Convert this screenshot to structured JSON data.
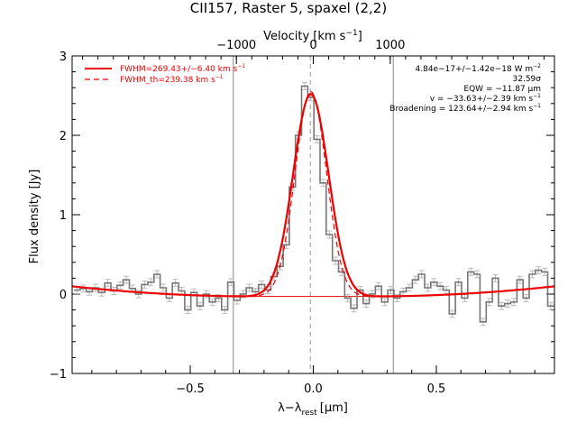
{
  "chart_data": {
    "type": "line",
    "title": "CII157, Raster 5, spaxel (2,2)",
    "xlabel_main": "λ",
    "xlabel_minus": "−",
    "xlabel_lambda": "λ",
    "xlabel_sub": "rest",
    "xlabel_unit": "[μm]",
    "ylabel": "Flux density [Jy]",
    "top_axis_label_main": "Velocity [km s",
    "top_axis_label_sup": "−1",
    "top_axis_label_end": "]",
    "xlim": [
      -0.98,
      0.98
    ],
    "ylim": [
      -1,
      3
    ],
    "x_ticks": [
      {
        "value": -0.5,
        "label": "−0.5"
      },
      {
        "value": 0.0,
        "label": "0.0"
      },
      {
        "value": 0.5,
        "label": "0.5"
      }
    ],
    "y_ticks": [
      {
        "value": -1,
        "label": "−1"
      },
      {
        "value": 0,
        "label": "0"
      },
      {
        "value": 1,
        "label": "1"
      },
      {
        "value": 2,
        "label": "2"
      },
      {
        "value": 3,
        "label": "3"
      }
    ],
    "top_ticks": [
      {
        "value": -0.3125,
        "label": "−1000"
      },
      {
        "value": 0.0,
        "label": "0"
      },
      {
        "value": 0.3125,
        "label": "1000"
      }
    ],
    "vertical_lines": [
      -0.325,
      0.325
    ],
    "center_dashed_line": -0.012,
    "legend": [
      {
        "label_pre": "FWHM=269.43+/−6.40 km s",
        "sup": "−1",
        "style": "solid",
        "color": "#ee0000"
      },
      {
        "label_pre": "FWHM_th=239.38 km s",
        "sup": "−1",
        "style": "dashed",
        "color": "#ee0000"
      }
    ],
    "annotations": [
      {
        "pre": "4.84e−17+/−1.42e−18 W m",
        "sup": "−2"
      },
      {
        "pre": "32.59σ",
        "sup": ""
      },
      {
        "pre": "EQW = −11.87 μm",
        "sup": ""
      },
      {
        "pre": "v = −33.63+/−2.39 km s",
        "sup": "−1"
      },
      {
        "pre": "Broadening = 123.64+/−2.94 km s",
        "sup": "−1"
      }
    ],
    "spectrum": {
      "name": "data",
      "color": "#777777",
      "x": [
        -0.96,
        -0.935,
        -0.91,
        -0.885,
        -0.86,
        -0.835,
        -0.81,
        -0.785,
        -0.76,
        -0.735,
        -0.71,
        -0.685,
        -0.66,
        -0.635,
        -0.61,
        -0.585,
        -0.56,
        -0.535,
        -0.51,
        -0.485,
        -0.46,
        -0.435,
        -0.41,
        -0.385,
        -0.36,
        -0.335,
        -0.31,
        -0.285,
        -0.26,
        -0.235,
        -0.21,
        -0.185,
        -0.16,
        -0.135,
        -0.11,
        -0.085,
        -0.06,
        -0.035,
        -0.01,
        0.015,
        0.04,
        0.065,
        0.09,
        0.115,
        0.14,
        0.165,
        0.19,
        0.215,
        0.24,
        0.265,
        0.29,
        0.315,
        0.34,
        0.365,
        0.39,
        0.415,
        0.44,
        0.465,
        0.49,
        0.515,
        0.54,
        0.565,
        0.59,
        0.615,
        0.64,
        0.665,
        0.69,
        0.715,
        0.74,
        0.765,
        0.79,
        0.815,
        0.84,
        0.865,
        0.89,
        0.915,
        0.94,
        0.965
      ],
      "y": [
        0.05,
        0.07,
        0.03,
        0.08,
        0.02,
        0.14,
        0.04,
        0.11,
        0.18,
        0.07,
        0.0,
        0.12,
        0.15,
        0.25,
        0.08,
        -0.05,
        0.14,
        0.04,
        -0.2,
        0.02,
        -0.15,
        0.0,
        -0.1,
        -0.05,
        -0.2,
        0.15,
        -0.08,
        0.0,
        0.08,
        0.03,
        0.12,
        0.05,
        0.22,
        0.35,
        0.62,
        1.35,
        2.0,
        2.62,
        2.48,
        1.95,
        1.4,
        0.75,
        0.42,
        0.28,
        -0.05,
        -0.18,
        0.05,
        -0.12,
        0.0,
        0.1,
        -0.1,
        0.05,
        -0.05,
        0.03,
        0.08,
        0.18,
        0.25,
        0.08,
        0.15,
        0.1,
        0.05,
        -0.25,
        0.15,
        -0.05,
        0.28,
        0.25,
        -0.35,
        -0.1,
        0.2,
        -0.15,
        -0.12,
        -0.1,
        0.18,
        -0.05,
        0.25,
        0.3,
        0.28,
        -0.15
      ]
    },
    "continuum": {
      "name": "continuum",
      "color": "#ee0000",
      "y_level": -0.03
    },
    "fit": {
      "name": "fit",
      "color": "#ee0000",
      "peak": 2.55,
      "center": -0.01,
      "sigma": 0.072,
      "baseline_quadratic": {
        "a": 0.16,
        "c0": -0.03,
        "center": 0.0
      }
    },
    "fit_th": {
      "name": "fit_th",
      "color": "#ee0000",
      "peak": 2.58,
      "center": -0.01,
      "sigma": 0.064
    }
  }
}
